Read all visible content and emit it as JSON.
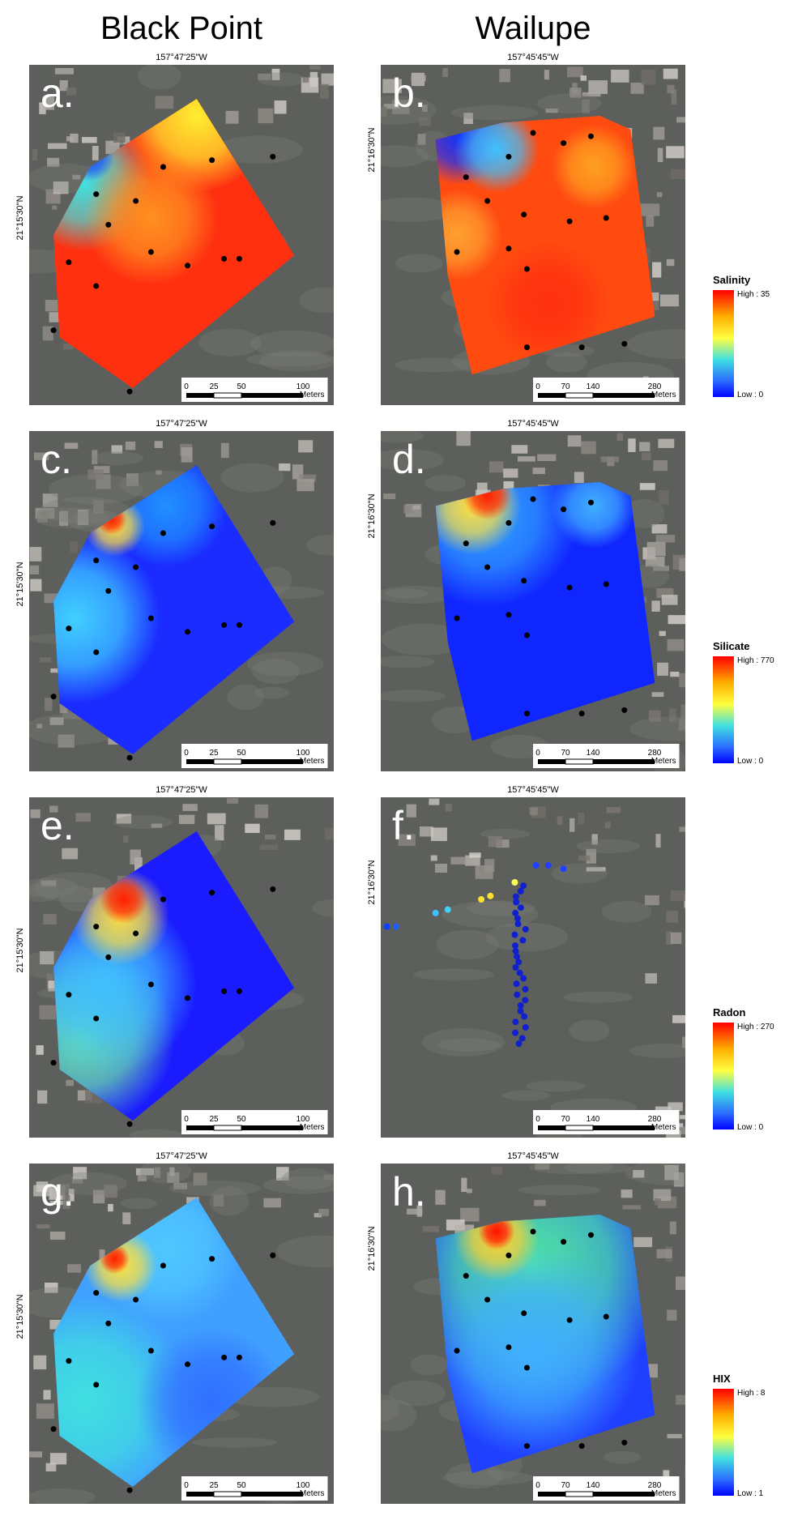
{
  "columns": [
    "Black Point",
    "Wailupe"
  ],
  "panels": [
    {
      "letter": "a.",
      "lon": "157°47'25\"W",
      "lat": "21°15'30\"N",
      "scale": [
        "0",
        "25",
        "50",
        "100",
        "Meters"
      ]
    },
    {
      "letter": "b.",
      "lon": "157°45'45\"W",
      "lat": "21°16'30\"N",
      "scale": [
        "0",
        "70",
        "140",
        "280",
        "Meters"
      ]
    },
    {
      "letter": "c.",
      "lon": "157°47'25\"W",
      "lat": "21°15'30\"N",
      "scale": [
        "0",
        "25",
        "50",
        "100",
        "Meters"
      ]
    },
    {
      "letter": "d.",
      "lon": "157°45'45\"W",
      "lat": "21°16'30\"N",
      "scale": [
        "0",
        "70",
        "140",
        "280",
        "Meters"
      ]
    },
    {
      "letter": "e.",
      "lon": "157°47'25\"W",
      "lat": "21°15'30\"N",
      "scale": [
        "0",
        "25",
        "50",
        "100",
        "Meters"
      ]
    },
    {
      "letter": "f.",
      "lon": "157°45'45\"W",
      "lat": "21°16'30\"N",
      "scale": [
        "0",
        "70",
        "140",
        "280",
        "Meters"
      ]
    },
    {
      "letter": "g.",
      "lon": "157°47'25\"W",
      "lat": "21°15'30\"N",
      "scale": [
        "0",
        "25",
        "50",
        "100",
        "Meters"
      ]
    },
    {
      "letter": "h.",
      "lon": "157°45'45\"W",
      "lat": "21°16'30\"N",
      "scale": [
        "0",
        "70",
        "140",
        "280",
        "Meters"
      ]
    }
  ],
  "legends": [
    {
      "title": "Salinity",
      "high": "High : 35",
      "low": "Low : 0"
    },
    {
      "title": "Silicate",
      "high": "High : 770",
      "low": "Low : 0"
    },
    {
      "title": "Radon",
      "high": "High : 270",
      "low": "Low : 0"
    },
    {
      "title": "HIX",
      "high": "High : 8",
      "low": "Low : 1"
    }
  ]
}
